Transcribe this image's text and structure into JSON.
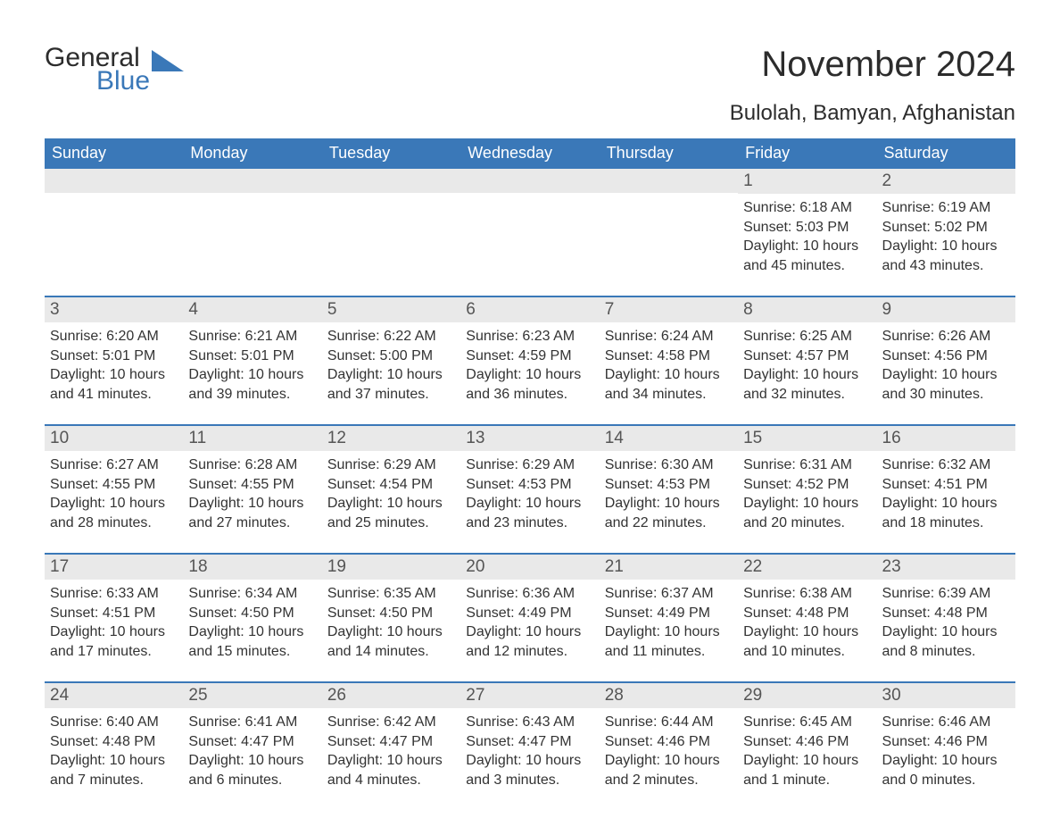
{
  "logo": {
    "general": "General",
    "blue": "Blue",
    "shape_color": "#3a78b8",
    "text_color": "#2c2c2c"
  },
  "title": "November 2024",
  "location": "Bulolah, Bamyan, Afghanistan",
  "colors": {
    "header_bg": "#3a78b8",
    "header_text": "#ffffff",
    "daynum_bg": "#e9e9e9",
    "daynum_text": "#555555",
    "body_text": "#333333",
    "row_border": "#3a78b8",
    "page_bg": "#ffffff"
  },
  "typography": {
    "title_fontsize": 40,
    "location_fontsize": 24,
    "weekday_fontsize": 18,
    "daynum_fontsize": 19,
    "body_fontsize": 16
  },
  "layout": {
    "columns": 7,
    "rows": 5,
    "first_day_column_index": 5
  },
  "weekdays": [
    "Sunday",
    "Monday",
    "Tuesday",
    "Wednesday",
    "Thursday",
    "Friday",
    "Saturday"
  ],
  "weeks": [
    [
      null,
      null,
      null,
      null,
      null,
      {
        "day": "1",
        "sunrise": "Sunrise: 6:18 AM",
        "sunset": "Sunset: 5:03 PM",
        "daylight": "Daylight: 10 hours and 45 minutes."
      },
      {
        "day": "2",
        "sunrise": "Sunrise: 6:19 AM",
        "sunset": "Sunset: 5:02 PM",
        "daylight": "Daylight: 10 hours and 43 minutes."
      }
    ],
    [
      {
        "day": "3",
        "sunrise": "Sunrise: 6:20 AM",
        "sunset": "Sunset: 5:01 PM",
        "daylight": "Daylight: 10 hours and 41 minutes."
      },
      {
        "day": "4",
        "sunrise": "Sunrise: 6:21 AM",
        "sunset": "Sunset: 5:01 PM",
        "daylight": "Daylight: 10 hours and 39 minutes."
      },
      {
        "day": "5",
        "sunrise": "Sunrise: 6:22 AM",
        "sunset": "Sunset: 5:00 PM",
        "daylight": "Daylight: 10 hours and 37 minutes."
      },
      {
        "day": "6",
        "sunrise": "Sunrise: 6:23 AM",
        "sunset": "Sunset: 4:59 PM",
        "daylight": "Daylight: 10 hours and 36 minutes."
      },
      {
        "day": "7",
        "sunrise": "Sunrise: 6:24 AM",
        "sunset": "Sunset: 4:58 PM",
        "daylight": "Daylight: 10 hours and 34 minutes."
      },
      {
        "day": "8",
        "sunrise": "Sunrise: 6:25 AM",
        "sunset": "Sunset: 4:57 PM",
        "daylight": "Daylight: 10 hours and 32 minutes."
      },
      {
        "day": "9",
        "sunrise": "Sunrise: 6:26 AM",
        "sunset": "Sunset: 4:56 PM",
        "daylight": "Daylight: 10 hours and 30 minutes."
      }
    ],
    [
      {
        "day": "10",
        "sunrise": "Sunrise: 6:27 AM",
        "sunset": "Sunset: 4:55 PM",
        "daylight": "Daylight: 10 hours and 28 minutes."
      },
      {
        "day": "11",
        "sunrise": "Sunrise: 6:28 AM",
        "sunset": "Sunset: 4:55 PM",
        "daylight": "Daylight: 10 hours and 27 minutes."
      },
      {
        "day": "12",
        "sunrise": "Sunrise: 6:29 AM",
        "sunset": "Sunset: 4:54 PM",
        "daylight": "Daylight: 10 hours and 25 minutes."
      },
      {
        "day": "13",
        "sunrise": "Sunrise: 6:29 AM",
        "sunset": "Sunset: 4:53 PM",
        "daylight": "Daylight: 10 hours and 23 minutes."
      },
      {
        "day": "14",
        "sunrise": "Sunrise: 6:30 AM",
        "sunset": "Sunset: 4:53 PM",
        "daylight": "Daylight: 10 hours and 22 minutes."
      },
      {
        "day": "15",
        "sunrise": "Sunrise: 6:31 AM",
        "sunset": "Sunset: 4:52 PM",
        "daylight": "Daylight: 10 hours and 20 minutes."
      },
      {
        "day": "16",
        "sunrise": "Sunrise: 6:32 AM",
        "sunset": "Sunset: 4:51 PM",
        "daylight": "Daylight: 10 hours and 18 minutes."
      }
    ],
    [
      {
        "day": "17",
        "sunrise": "Sunrise: 6:33 AM",
        "sunset": "Sunset: 4:51 PM",
        "daylight": "Daylight: 10 hours and 17 minutes."
      },
      {
        "day": "18",
        "sunrise": "Sunrise: 6:34 AM",
        "sunset": "Sunset: 4:50 PM",
        "daylight": "Daylight: 10 hours and 15 minutes."
      },
      {
        "day": "19",
        "sunrise": "Sunrise: 6:35 AM",
        "sunset": "Sunset: 4:50 PM",
        "daylight": "Daylight: 10 hours and 14 minutes."
      },
      {
        "day": "20",
        "sunrise": "Sunrise: 6:36 AM",
        "sunset": "Sunset: 4:49 PM",
        "daylight": "Daylight: 10 hours and 12 minutes."
      },
      {
        "day": "21",
        "sunrise": "Sunrise: 6:37 AM",
        "sunset": "Sunset: 4:49 PM",
        "daylight": "Daylight: 10 hours and 11 minutes."
      },
      {
        "day": "22",
        "sunrise": "Sunrise: 6:38 AM",
        "sunset": "Sunset: 4:48 PM",
        "daylight": "Daylight: 10 hours and 10 minutes."
      },
      {
        "day": "23",
        "sunrise": "Sunrise: 6:39 AM",
        "sunset": "Sunset: 4:48 PM",
        "daylight": "Daylight: 10 hours and 8 minutes."
      }
    ],
    [
      {
        "day": "24",
        "sunrise": "Sunrise: 6:40 AM",
        "sunset": "Sunset: 4:48 PM",
        "daylight": "Daylight: 10 hours and 7 minutes."
      },
      {
        "day": "25",
        "sunrise": "Sunrise: 6:41 AM",
        "sunset": "Sunset: 4:47 PM",
        "daylight": "Daylight: 10 hours and 6 minutes."
      },
      {
        "day": "26",
        "sunrise": "Sunrise: 6:42 AM",
        "sunset": "Sunset: 4:47 PM",
        "daylight": "Daylight: 10 hours and 4 minutes."
      },
      {
        "day": "27",
        "sunrise": "Sunrise: 6:43 AM",
        "sunset": "Sunset: 4:47 PM",
        "daylight": "Daylight: 10 hours and 3 minutes."
      },
      {
        "day": "28",
        "sunrise": "Sunrise: 6:44 AM",
        "sunset": "Sunset: 4:46 PM",
        "daylight": "Daylight: 10 hours and 2 minutes."
      },
      {
        "day": "29",
        "sunrise": "Sunrise: 6:45 AM",
        "sunset": "Sunset: 4:46 PM",
        "daylight": "Daylight: 10 hours and 1 minute."
      },
      {
        "day": "30",
        "sunrise": "Sunrise: 6:46 AM",
        "sunset": "Sunset: 4:46 PM",
        "daylight": "Daylight: 10 hours and 0 minutes."
      }
    ]
  ]
}
